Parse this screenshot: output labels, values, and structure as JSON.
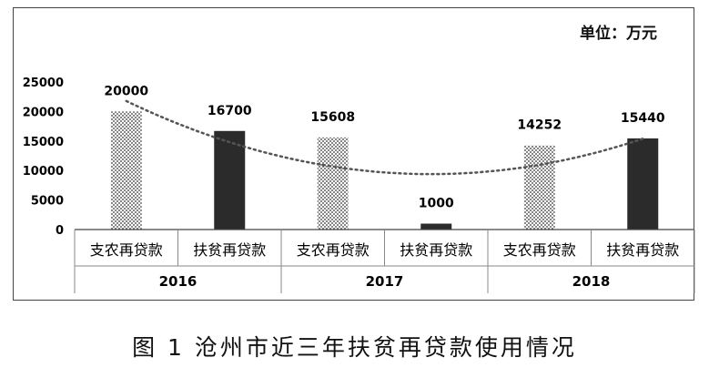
{
  "unit_label": "单位：万元",
  "caption": "图 1    沧州市近三年扶贫再贷款使用情况",
  "chart_data": {
    "type": "bar",
    "title": "",
    "xlabel": "",
    "ylabel": "",
    "ylim": [
      0,
      25000
    ],
    "yticks": [
      "0",
      "5000",
      "10000",
      "15000",
      "20000",
      "25000"
    ],
    "ytick_values": [
      0,
      5000,
      10000,
      15000,
      20000,
      25000
    ],
    "grid": false,
    "groups": [
      "2016",
      "2017",
      "2018"
    ],
    "categories": [
      "支农再贷款",
      "扶贫再贷款",
      "支农再贷款",
      "扶贫再贷款",
      "支农再贷款",
      "扶贫再贷款"
    ],
    "values": [
      20000,
      16700,
      15608,
      1000,
      14252,
      15440
    ],
    "data_labels": [
      "20000",
      "16700",
      "15608",
      "1000",
      "14252",
      "15440"
    ],
    "bar_styles": [
      "dotted",
      "solid",
      "dotted",
      "solid",
      "dotted",
      "solid"
    ],
    "trendline": {
      "type": "polynomial",
      "style": "dotted"
    },
    "colors": {
      "solid": "#2b2b2b",
      "dotted": "#333333",
      "trend": "#555555"
    }
  }
}
